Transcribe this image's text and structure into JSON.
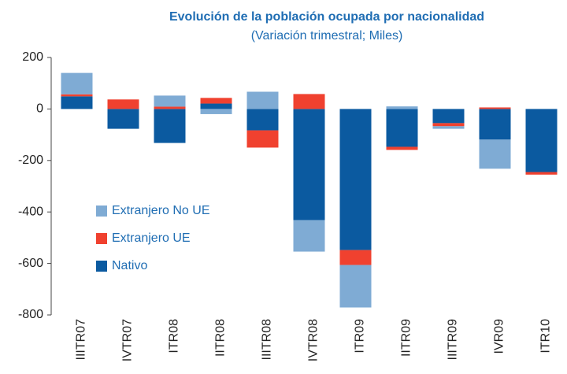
{
  "chart_data": {
    "type": "stacked_bar",
    "title": "Evolución de la población ocupada por nacionalidad",
    "subtitle": "(Variación trimestral; Miles)",
    "categories": [
      "IIITR07",
      "IVTR07",
      "ITR08",
      "IITR08",
      "IIITR08",
      "IVTR08",
      "ITR09",
      "IITR09",
      "IIITR09",
      "IVR09",
      "ITR10"
    ],
    "series": [
      {
        "name": "Nativo",
        "color": "#0b5aa0",
        "values": [
          49,
          -77,
          -132,
          21,
          -83,
          -432,
          -548,
          -147,
          -55,
          -119,
          -245
        ]
      },
      {
        "name": "Extranjero UE",
        "color": "#f0412f",
        "values": [
          8,
          37,
          9,
          22,
          -67,
          58,
          -58,
          -12,
          -12,
          6,
          -10
        ]
      },
      {
        "name": "Extranjero No UE",
        "color": "#7fabd4",
        "values": [
          83,
          0,
          43,
          -20,
          67,
          -122,
          -165,
          10,
          -10,
          -113,
          0
        ]
      }
    ],
    "ylim": [
      -800,
      200
    ],
    "yticks": [
      -800,
      -600,
      -400,
      -200,
      0,
      200
    ],
    "legend": "left"
  }
}
